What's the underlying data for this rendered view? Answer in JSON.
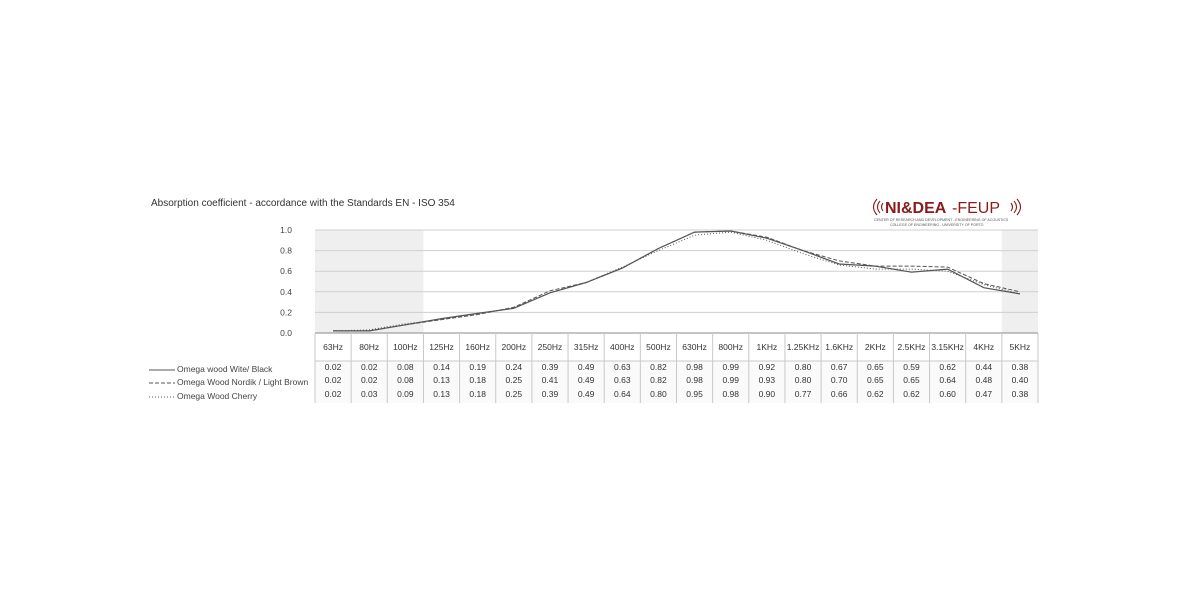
{
  "chart_data": {
    "type": "line",
    "title": "Absorption coefficient  -  accordance with the Standards EN - ISO 354",
    "categories": [
      "63Hz",
      "80Hz",
      "100Hz",
      "125Hz",
      "160Hz",
      "200Hz",
      "250Hz",
      "315Hz",
      "400Hz",
      "500Hz",
      "630Hz",
      "800Hz",
      "1KHz",
      "1.25KHz",
      "1.6KHz",
      "2KHz",
      "2.5KHz",
      "3.15KHz",
      "4KHz",
      "5KHz"
    ],
    "ylim": [
      0,
      1.0
    ],
    "yticks": [
      "1.0",
      "0.8",
      "0.6",
      "0.4",
      "0.2",
      "0.0"
    ],
    "grid": true,
    "series": [
      {
        "name": "Omega wood Wite/ Black",
        "style": "solid",
        "values": [
          0.02,
          0.02,
          0.08,
          0.14,
          0.19,
          0.24,
          0.39,
          0.49,
          0.63,
          0.82,
          0.98,
          0.99,
          0.92,
          0.8,
          0.67,
          0.65,
          0.59,
          0.62,
          0.44,
          0.38
        ]
      },
      {
        "name": "Omega Wood  Nordik / Light Brown",
        "style": "dashed",
        "values": [
          0.02,
          0.02,
          0.08,
          0.13,
          0.18,
          0.25,
          0.41,
          0.49,
          0.63,
          0.82,
          0.98,
          0.99,
          0.93,
          0.8,
          0.7,
          0.65,
          0.65,
          0.64,
          0.48,
          0.4
        ]
      },
      {
        "name": "Omega Wood Cherry",
        "style": "dotted",
        "values": [
          0.02,
          0.03,
          0.09,
          0.13,
          0.18,
          0.25,
          0.39,
          0.49,
          0.64,
          0.8,
          0.95,
          0.98,
          0.9,
          0.77,
          0.66,
          0.62,
          0.62,
          0.6,
          0.47,
          0.38
        ]
      }
    ]
  },
  "logo": {
    "text_main": "NI&DEA",
    "text_sub": "-FEUP",
    "line1": "CENTER OF RESEARCH AND DEVELOPMENT - ENGINEERING OF ACOUSTICS",
    "line2": "COLLEGE OF ENGINEERING - UNIVERSITY OF PORTO",
    "color": "#8b1a1a"
  },
  "colors": {
    "line": "#555555",
    "grid": "#cfcfcf",
    "shade": "#efefef",
    "table_border": "#c8c8c8"
  }
}
